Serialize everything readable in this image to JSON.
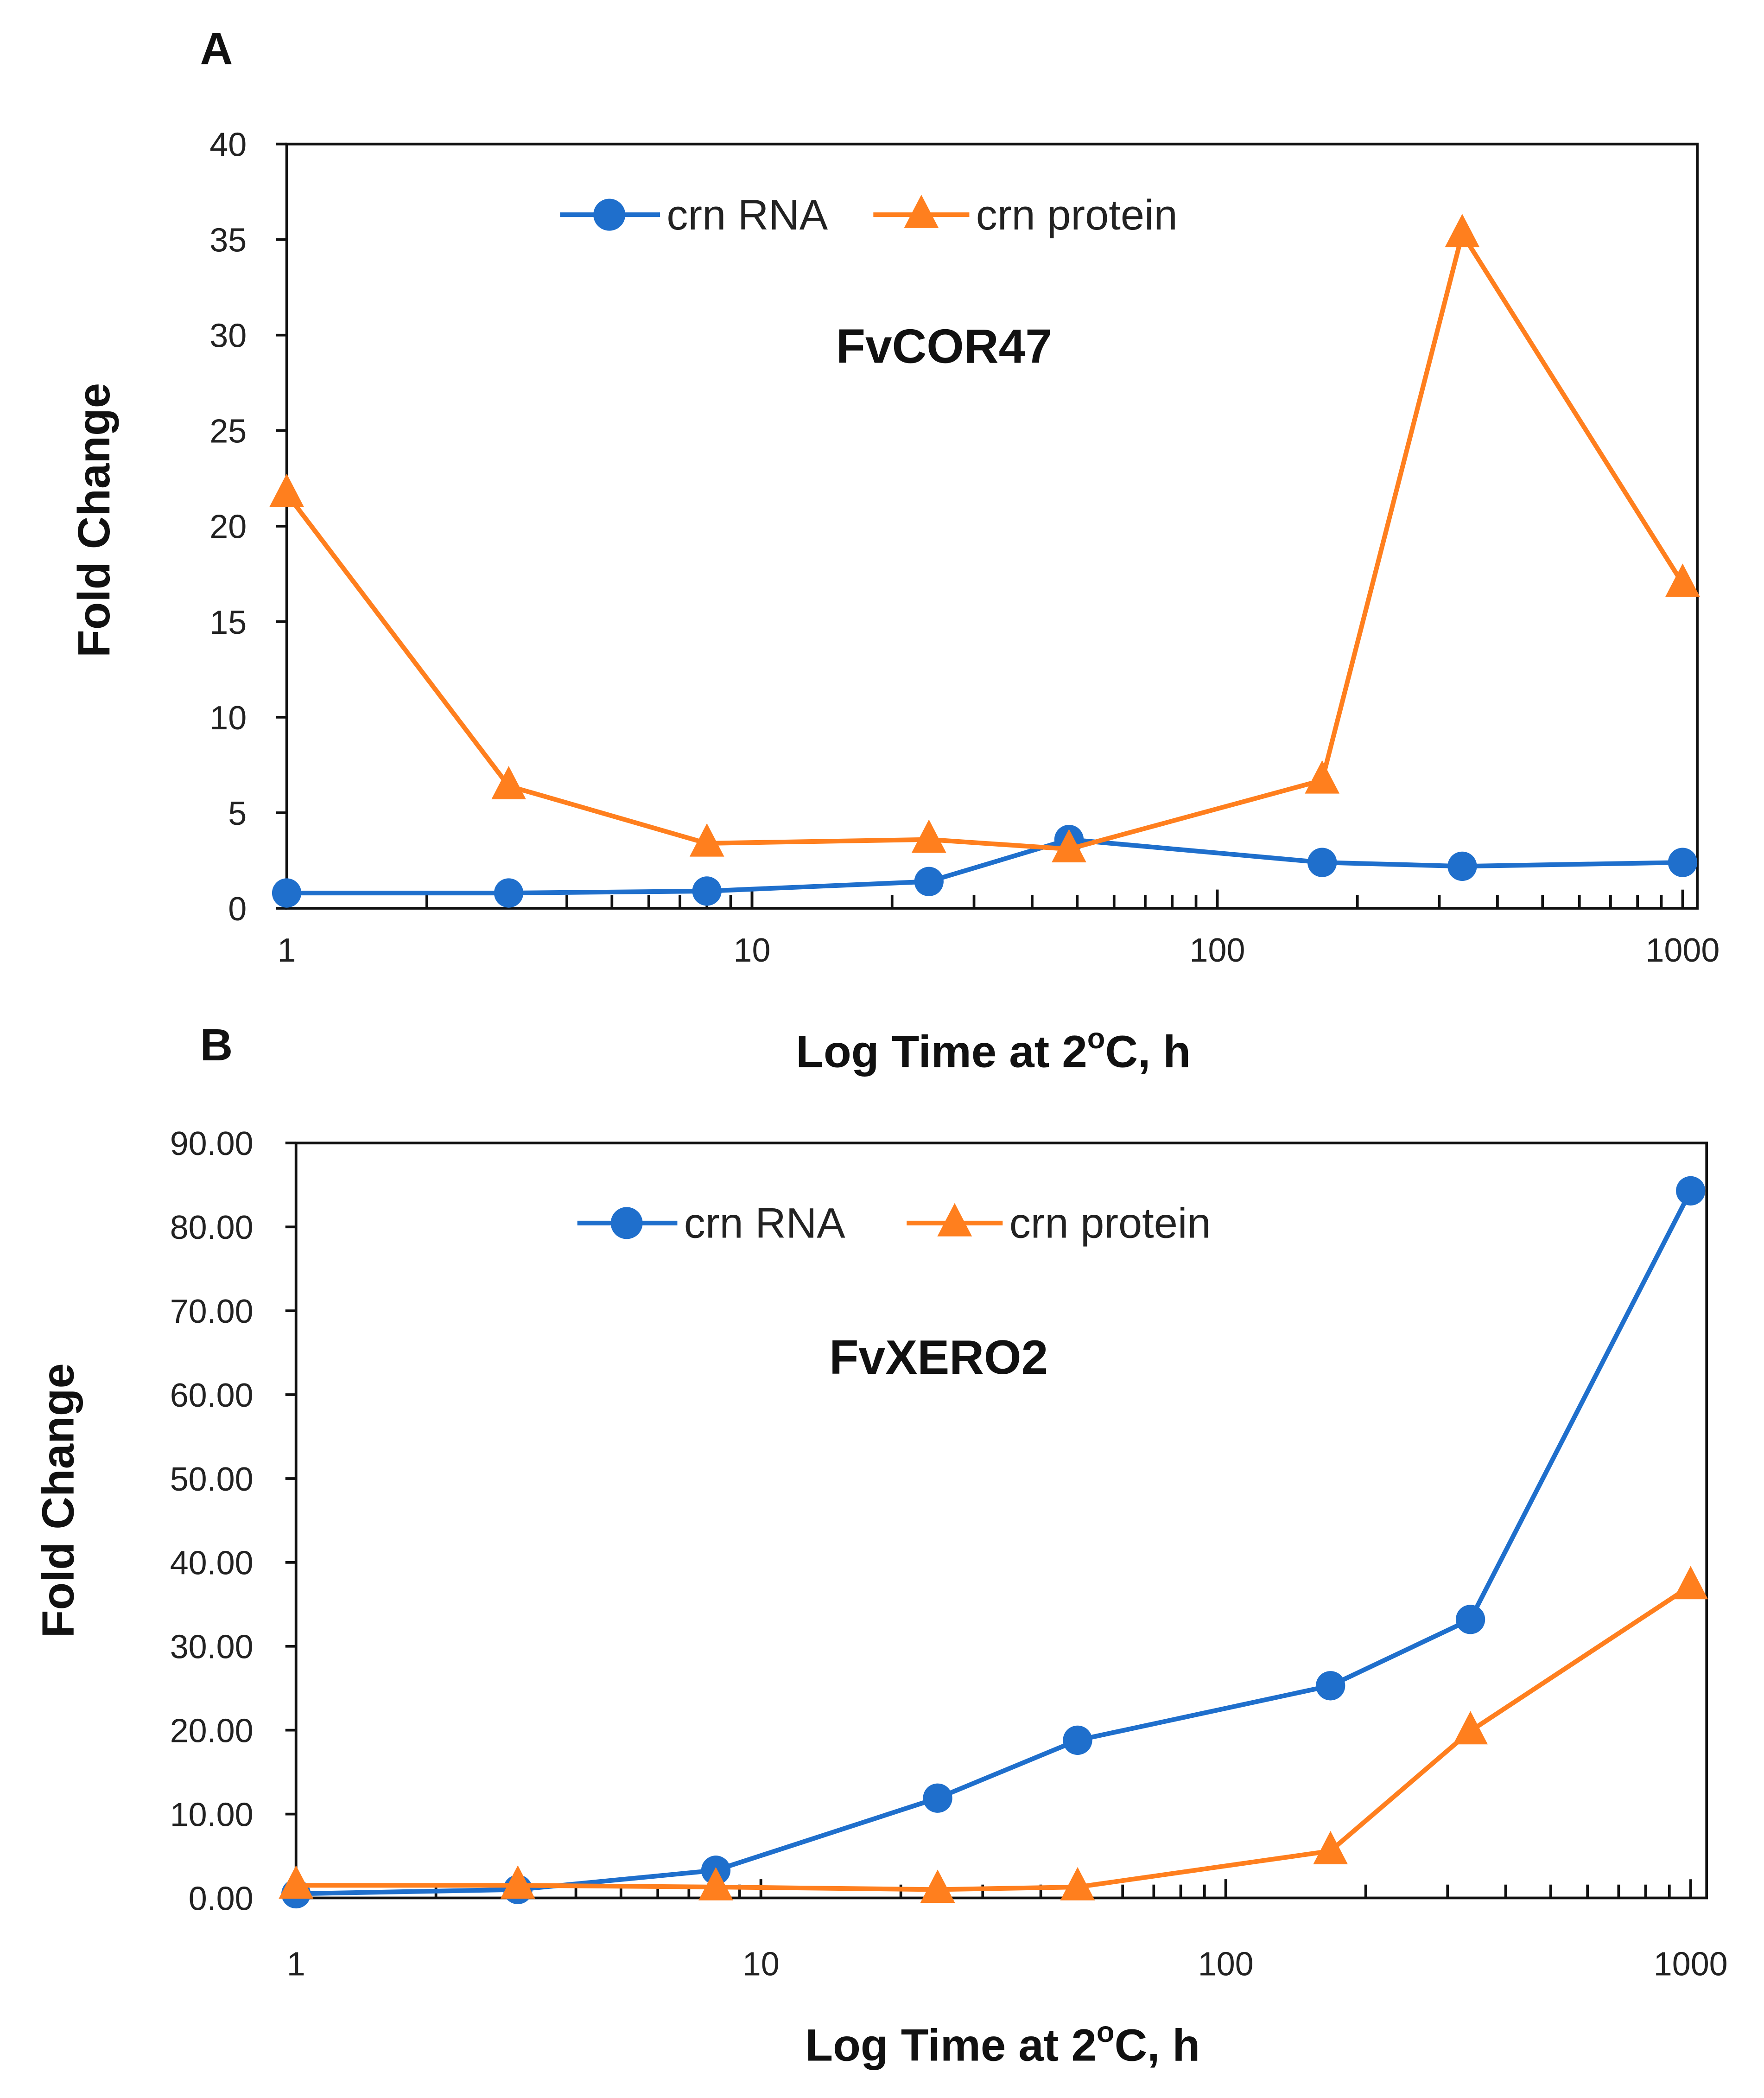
{
  "colors": {
    "rna": "#1f6fcc",
    "protein": "#ff7f1e",
    "axis": "#111111"
  },
  "chart_data": [
    {
      "type": "line",
      "panel": "A",
      "title": "FvCOR47",
      "xlabel_parts": [
        "Log Time at 2",
        "o",
        "C, h"
      ],
      "ylabel": "Fold Change",
      "xscale": "log",
      "xlim": [
        1,
        1000
      ],
      "ylim": [
        0,
        40
      ],
      "xticks": [
        "1",
        "10",
        "100",
        "1000"
      ],
      "yticks": [
        "0",
        "5",
        "10",
        "15",
        "20",
        "25",
        "30",
        "35",
        "40"
      ],
      "legend_position": "top-center",
      "x": [
        1,
        3,
        8,
        24,
        48,
        168,
        336,
        1000
      ],
      "series": [
        {
          "name": "crn RNA",
          "marker": "circle",
          "values": [
            0.8,
            0.8,
            0.9,
            1.4,
            3.6,
            2.4,
            2.2,
            2.4
          ]
        },
        {
          "name": "crn protein",
          "marker": "triangle",
          "values": [
            21.7,
            6.4,
            3.4,
            3.6,
            3.1,
            6.7,
            35.3,
            17.0
          ]
        }
      ]
    },
    {
      "type": "line",
      "panel": "B",
      "title": "FvXERO2",
      "xlabel_parts": [
        "Log Time at 2",
        "o",
        "C, h"
      ],
      "ylabel": "Fold Change",
      "xscale": "log",
      "xlim": [
        1,
        1000
      ],
      "ylim": [
        0,
        90
      ],
      "xticks": [
        "1",
        "10",
        "100",
        "1000"
      ],
      "yticks": [
        "0.00",
        "10.00",
        "20.00",
        "30.00",
        "40.00",
        "50.00",
        "60.00",
        "70.00",
        "80.00",
        "90.00"
      ],
      "legend_position": "top-center",
      "x": [
        1,
        3,
        8,
        24,
        48,
        168,
        336,
        1000
      ],
      "series": [
        {
          "name": "crn RNA",
          "marker": "circle",
          "values": [
            0.5,
            1.0,
            3.3,
            11.9,
            18.8,
            25.3,
            33.2,
            84.3
          ]
        },
        {
          "name": "crn protein",
          "marker": "triangle",
          "values": [
            1.5,
            1.5,
            1.3,
            1.0,
            1.3,
            5.6,
            19.9,
            37.2
          ]
        }
      ]
    }
  ]
}
